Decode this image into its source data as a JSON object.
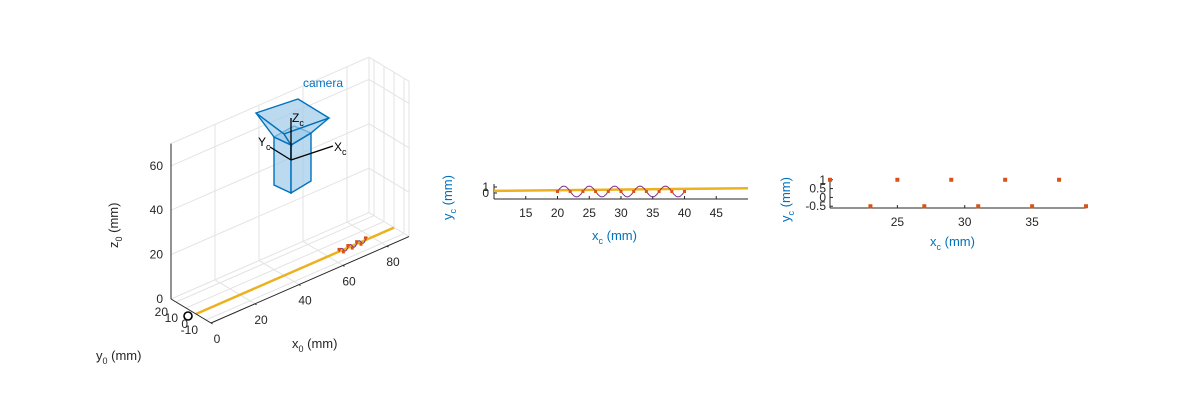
{
  "colors": {
    "trajectory": "#EDB120",
    "points": "#D95319",
    "camera_edge": "#0072BD",
    "camera_fill": "#9ECAE9",
    "axis_text": "#262626",
    "label_blue": "#0072BD"
  },
  "chart_data": [
    {
      "type": "line",
      "projection": "3d",
      "camera_label": "camera",
      "frame_labels": {
        "x": "X",
        "y": "Y",
        "z": "Z",
        "sub": "c"
      },
      "xlabel": {
        "base": "x",
        "sub": "0",
        "unit": "(mm)"
      },
      "ylabel": {
        "base": "y",
        "sub": "0",
        "unit": "(mm)"
      },
      "zlabel": {
        "base": "z",
        "sub": "0",
        "unit": "(mm)"
      },
      "xlim": [
        0,
        90
      ],
      "ylim": [
        -15,
        25
      ],
      "zlim": [
        0,
        70
      ],
      "xticks": [
        0,
        20,
        40,
        60,
        80
      ],
      "yticks": [
        -10,
        0,
        10,
        20
      ],
      "zticks": [
        0,
        20,
        40,
        60
      ],
      "grid": true,
      "origin_marker": {
        "x": 0,
        "y": 0,
        "z": 0
      },
      "trajectory": {
        "x0": 0,
        "x1": 90,
        "y": 0,
        "z": 0
      },
      "sine_points": {
        "x_start": 65,
        "x_end": 78,
        "amplitude": 1,
        "period": 4
      }
    },
    {
      "type": "line",
      "xlabel": {
        "base": "x",
        "sub": "c",
        "unit": "(mm)"
      },
      "ylabel": {
        "base": "y",
        "sub": "c",
        "unit": "(mm)"
      },
      "xlim": [
        10,
        50
      ],
      "ylim": [
        -1,
        1.5
      ],
      "xticks": [
        15,
        20,
        25,
        30,
        35,
        40,
        45
      ],
      "yticks": [
        0,
        1
      ],
      "line": {
        "x": [
          10,
          50
        ],
        "y": [
          0.35,
          0.8
        ]
      },
      "sine": {
        "x_start": 20,
        "x_end": 40,
        "amplitude": 1,
        "period": 4,
        "phase_start": 0.5
      }
    },
    {
      "type": "scatter",
      "xlabel": {
        "base": "x",
        "sub": "c",
        "unit": "(mm)"
      },
      "ylabel": {
        "base": "y",
        "sub": "c",
        "unit": "(mm)"
      },
      "xlim": [
        20,
        39
      ],
      "ylim": [
        -0.6,
        1.1
      ],
      "xticks": [
        25,
        30,
        35
      ],
      "yticks": [
        1,
        0.5,
        0,
        -0.5
      ],
      "ytick_labels": [
        "1",
        "0.5",
        "0",
        "-0.5"
      ],
      "points": {
        "x": [
          20,
          23,
          25,
          27,
          29,
          31,
          33,
          35,
          37,
          39
        ],
        "y": [
          1,
          -0.5,
          1,
          -0.5,
          1,
          -0.5,
          1,
          -0.5,
          1,
          -0.5
        ]
      }
    }
  ]
}
